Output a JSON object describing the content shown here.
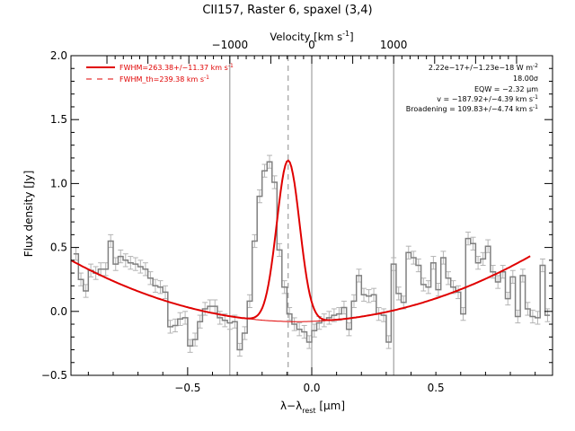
{
  "chart_data": {
    "type": "line",
    "title": "CII157, Raster 6, spaxel (3,4)",
    "xlabel_main": "λ−λ",
    "xlabel_sub": "rest",
    "xlabel_unit": " [μm]",
    "ylabel": "Flux density [Jy]",
    "top_axis_label": "Velocity [km s",
    "top_axis_sup": "-1",
    "top_axis_close": "]",
    "xlim": [
      -0.97,
      0.97
    ],
    "ylim": [
      -0.5,
      2.0
    ],
    "x_ticks": [
      {
        "value": -0.5,
        "label": "−0.5"
      },
      {
        "value": 0.0,
        "label": "0.0"
      },
      {
        "value": 0.5,
        "label": "0.5"
      }
    ],
    "y_ticks": [
      {
        "value": -0.5,
        "label": "−0.5"
      },
      {
        "value": 0.0,
        "label": "0.0"
      },
      {
        "value": 0.5,
        "label": "0.5"
      },
      {
        "value": 1.0,
        "label": "1.0"
      },
      {
        "value": 1.5,
        "label": "1.5"
      },
      {
        "value": 2.0,
        "label": "2.0"
      }
    ],
    "top_ticks": [
      {
        "value": -1000,
        "label": "−1000"
      },
      {
        "value": 0,
        "label": "0"
      },
      {
        "value": 1000,
        "label": "1000"
      }
    ],
    "velocity_per_um": 3030,
    "vertical_lines": [
      -0.33,
      0.0,
      0.33
    ],
    "dashed_line_x": -0.095,
    "legend": [
      {
        "label": "FWHM=263.38+/−11.37 km s",
        "sup": "-1",
        "style": "solid"
      },
      {
        "label": "FWHM_th=239.38 km s",
        "sup": "-1",
        "style": "dashed"
      }
    ],
    "annotations": [
      {
        "text": "2.22e−17+/−1.23e−18 W m",
        "sup": "-2"
      },
      {
        "text": "18.00σ",
        "sup": ""
      },
      {
        "text": "EQW = −2.32 μm",
        "sup": ""
      },
      {
        "text": "v = −187.92+/−4.39 km s",
        "sup": "-1"
      },
      {
        "text": "Broadening = 109.83+/−4.74 km s",
        "sup": "-1"
      }
    ],
    "series": [
      {
        "kind": "data_histogram",
        "x": [
          -0.95,
          -0.93,
          -0.91,
          -0.89,
          -0.87,
          -0.85,
          -0.83,
          -0.81,
          -0.79,
          -0.77,
          -0.75,
          -0.73,
          -0.71,
          -0.69,
          -0.67,
          -0.65,
          -0.63,
          -0.61,
          -0.59,
          -0.57,
          -0.55,
          -0.53,
          -0.51,
          -0.49,
          -0.47,
          -0.45,
          -0.43,
          -0.41,
          -0.39,
          -0.37,
          -0.35,
          -0.33,
          -0.31,
          -0.29,
          -0.27,
          -0.25,
          -0.23,
          -0.21,
          -0.19,
          -0.17,
          -0.15,
          -0.13,
          -0.11,
          -0.09,
          -0.07,
          -0.05,
          -0.03,
          -0.01,
          0.01,
          0.03,
          0.05,
          0.07,
          0.09,
          0.11,
          0.13,
          0.15,
          0.17,
          0.19,
          0.21,
          0.23,
          0.25,
          0.27,
          0.29,
          0.31,
          0.33,
          0.35,
          0.37,
          0.39,
          0.41,
          0.43,
          0.45,
          0.47,
          0.49,
          0.51,
          0.53,
          0.55,
          0.57,
          0.59,
          0.61,
          0.63,
          0.65,
          0.67,
          0.69,
          0.71,
          0.73,
          0.75,
          0.77,
          0.79,
          0.81,
          0.83,
          0.85,
          0.87,
          0.89,
          0.91,
          0.93,
          0.95
        ],
        "values": [
          0.45,
          0.25,
          0.16,
          0.32,
          0.3,
          0.33,
          0.33,
          0.55,
          0.37,
          0.43,
          0.4,
          0.38,
          0.37,
          0.35,
          0.33,
          0.26,
          0.2,
          0.19,
          0.15,
          -0.12,
          -0.11,
          -0.06,
          -0.05,
          -0.27,
          -0.22,
          -0.08,
          0.02,
          0.04,
          0.04,
          -0.05,
          -0.07,
          -0.09,
          -0.08,
          -0.3,
          -0.17,
          0.08,
          0.55,
          0.9,
          1.1,
          1.17,
          1.01,
          0.48,
          0.19,
          -0.02,
          -0.1,
          -0.14,
          -0.16,
          -0.24,
          -0.15,
          -0.09,
          -0.07,
          -0.05,
          -0.03,
          -0.02,
          0.03,
          -0.14,
          0.08,
          0.28,
          0.13,
          0.12,
          0.13,
          -0.02,
          -0.03,
          -0.24,
          0.37,
          0.14,
          0.07,
          0.46,
          0.42,
          0.36,
          0.21,
          0.19,
          0.38,
          0.17,
          0.42,
          0.26,
          0.19,
          0.15,
          -0.02,
          0.57,
          0.53,
          0.38,
          0.41,
          0.51,
          0.31,
          0.23,
          0.31,
          0.1,
          0.27,
          -0.04,
          0.28,
          0.02,
          -0.04,
          -0.05,
          0.36,
          -0.03
        ],
        "errors": 0.05,
        "color": "#808080"
      },
      {
        "kind": "fit_model",
        "description_only_for_rendering": false,
        "baseline_quadratic": [
          0.0,
          -0.23,
          0.35,
          0.61
        ],
        "gaussian_center": -0.095,
        "gaussian_amplitude": 1.26,
        "gaussian_sigma": 0.046,
        "x_range": [
          -0.97,
          0.88
        ],
        "color": "#e00000"
      }
    ]
  }
}
